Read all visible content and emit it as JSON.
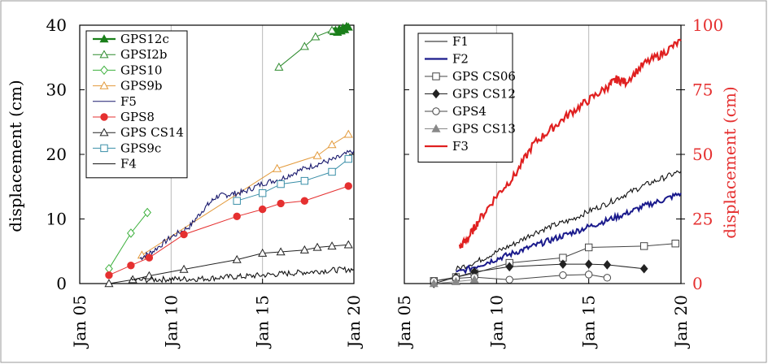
{
  "chart_data": [
    {
      "type": "line",
      "xaxis": {
        "type": "date",
        "range": [
          2005,
          2020
        ],
        "ticks": [
          2005,
          2010,
          2015,
          2020
        ],
        "tick_labels": [
          "Jan 05",
          "Jan 10",
          "Jan 15",
          "Jan 20"
        ]
      },
      "yaxis": {
        "label": "displacement (cm)",
        "range": [
          0,
          40
        ],
        "ticks": [
          0,
          10,
          20,
          30,
          40
        ],
        "tick_labels": [
          "0",
          "10",
          "20",
          "30",
          "40"
        ]
      },
      "grid": "vertical",
      "legend_position": "top-left",
      "series": [
        {
          "name": "GPS12c",
          "style": "line-filled-triangle",
          "color": "#1a7f1a",
          "x": [
            2018.9,
            2019.0,
            2019.1,
            2019.2,
            2019.3,
            2019.4,
            2019.5,
            2019.6,
            2019.7
          ],
          "y": [
            39.0,
            39.2,
            38.9,
            39.4,
            39.1,
            39.6,
            39.3,
            39.8,
            39.7
          ]
        },
        {
          "name": "GPSI2b",
          "style": "line-open-triangle",
          "color": "#2e8b2e",
          "x": [
            2015.9,
            2017.3,
            2017.9,
            2018.8
          ],
          "y": [
            33.5,
            36.7,
            38.2,
            39.2
          ]
        },
        {
          "name": "GPS10",
          "style": "line-open-diamond",
          "color": "#3cb03c",
          "x": [
            2006.6,
            2007.8,
            2008.7
          ],
          "y": [
            2.3,
            7.8,
            11.0
          ]
        },
        {
          "name": "GPS9b",
          "style": "line-open-triangle",
          "color": "#e39a3b",
          "x": [
            2008.4,
            2015.8,
            2018.0,
            2018.8,
            2019.7
          ],
          "y": [
            4.4,
            17.8,
            19.8,
            21.5,
            23.1
          ]
        },
        {
          "name": "F5",
          "style": "noisy-line",
          "color": "#1a1a6e",
          "x": [
            2008.3,
            2009.0,
            2010.0,
            2011.0,
            2011.8,
            2012.5,
            2013.2,
            2014.0,
            2015.0,
            2016.0,
            2017.0,
            2018.0,
            2019.0,
            2020.0
          ],
          "y": [
            3.9,
            5.0,
            7.2,
            8.8,
            11.6,
            13.5,
            13.8,
            14.2,
            15.5,
            16.2,
            17.5,
            18.5,
            19.3,
            20.6
          ]
        },
        {
          "name": "GPS8",
          "style": "line-filled-circle",
          "color": "#e53030",
          "x": [
            2006.6,
            2007.8,
            2008.8,
            2010.7,
            2013.6,
            2015.0,
            2016.0,
            2017.3,
            2019.7
          ],
          "y": [
            1.3,
            2.8,
            4.0,
            7.6,
            10.4,
            11.5,
            12.4,
            12.8,
            15.1
          ]
        },
        {
          "name": "GPS CS14",
          "style": "line-open-triangle",
          "color": "#222222",
          "x": [
            2006.6,
            2007.9,
            2008.8,
            2010.7,
            2013.6,
            2015.0,
            2016.0,
            2017.3,
            2018.0,
            2018.8,
            2019.7
          ],
          "y": [
            0.0,
            0.6,
            1.2,
            2.2,
            3.7,
            4.7,
            4.9,
            5.2,
            5.6,
            5.8,
            6.0
          ]
        },
        {
          "name": "GPS9c",
          "style": "line-open-square",
          "color": "#3a8fa8",
          "x": [
            2013.6,
            2015.0,
            2016.0,
            2017.3,
            2018.8,
            2019.7
          ],
          "y": [
            12.8,
            14.0,
            15.4,
            15.9,
            17.3,
            19.3
          ]
        },
        {
          "name": "F4",
          "style": "noisy-line",
          "color": "#111111",
          "x": [
            2007.8,
            2009.0,
            2010.0,
            2011.0,
            2012.0,
            2013.0,
            2014.0,
            2015.0,
            2016.0,
            2017.0,
            2018.0,
            2019.0,
            2020.0
          ],
          "y": [
            0.5,
            0.6,
            0.7,
            0.7,
            0.8,
            1.0,
            1.1,
            1.3,
            1.5,
            1.7,
            1.9,
            2.1,
            2.2
          ]
        }
      ]
    },
    {
      "type": "line",
      "xaxis": {
        "type": "date",
        "range": [
          2005,
          2020
        ],
        "ticks": [
          2005,
          2010,
          2015,
          2020
        ],
        "tick_labels": [
          "Jan 05",
          "Jan 10",
          "Jan 15",
          "Jan 20"
        ]
      },
      "yaxis": {
        "label": "",
        "range": [
          0,
          40
        ],
        "ticks": [
          0,
          10,
          20,
          30,
          40
        ],
        "tick_labels": []
      },
      "y2axis": {
        "label": "displacement (cm)",
        "range": [
          0,
          100
        ],
        "ticks": [
          0,
          25,
          50,
          75,
          100
        ],
        "tick_labels": [
          "0",
          "25",
          "50",
          "75",
          "100"
        ],
        "color": "#e53030"
      },
      "grid": "vertical",
      "legend_position": "top-left",
      "series": [
        {
          "name": "F1",
          "style": "noisy-line",
          "color": "#111111",
          "axis": "left",
          "x": [
            2007.8,
            2009.0,
            2010.0,
            2011.0,
            2012.0,
            2013.0,
            2014.0,
            2015.0,
            2016.0,
            2017.0,
            2018.0,
            2019.0,
            2020.0
          ],
          "y": [
            2.2,
            3.5,
            4.9,
            6.2,
            7.8,
            8.9,
            9.8,
            11.2,
            12.4,
            13.8,
            15.2,
            16.3,
            17.4
          ]
        },
        {
          "name": "F2",
          "style": "noisy-line",
          "color": "#1a1a8c",
          "axis": "left",
          "x": [
            2007.8,
            2009.0,
            2010.0,
            2011.0,
            2012.0,
            2013.0,
            2014.0,
            2015.0,
            2016.0,
            2017.0,
            2018.0,
            2019.0,
            2020.0
          ],
          "y": [
            1.6,
            2.8,
            3.8,
            4.8,
            5.8,
            6.8,
            7.8,
            8.8,
            9.8,
            10.8,
            12.0,
            12.9,
            14.0
          ]
        },
        {
          "name": "GPS CS06",
          "style": "line-open-square",
          "color": "#444444",
          "axis": "left",
          "x": [
            2006.6,
            2007.8,
            2008.8,
            2010.7,
            2013.6,
            2015.0,
            2018.0,
            2019.7
          ],
          "y": [
            0.4,
            1.0,
            1.6,
            3.2,
            4.0,
            5.6,
            5.8,
            6.2
          ]
        },
        {
          "name": "GPS CS12",
          "style": "line-filled-diamond",
          "color": "#222222",
          "axis": "left",
          "x": [
            2006.6,
            2007.8,
            2008.8,
            2010.7,
            2013.6,
            2015.0,
            2016.0,
            2018.0
          ],
          "y": [
            0.0,
            1.0,
            1.8,
            2.6,
            3.0,
            3.0,
            2.9,
            2.3
          ]
        },
        {
          "name": "GPS4",
          "style": "line-open-circle",
          "color": "#444444",
          "axis": "left",
          "x": [
            2006.6,
            2007.8,
            2008.8,
            2010.7,
            2013.6,
            2015.0,
            2016.0
          ],
          "y": [
            0.4,
            0.8,
            1.0,
            0.6,
            1.3,
            1.4,
            0.9
          ]
        },
        {
          "name": "GPS CS13",
          "style": "line-filled-triangle",
          "color": "#888888",
          "axis": "left",
          "x": [
            2006.6,
            2007.8,
            2008.8
          ],
          "y": [
            0.0,
            0.3,
            0.6
          ]
        },
        {
          "name": "F3",
          "style": "noisy-line",
          "color": "#e02020",
          "axis": "right",
          "x": [
            2008.0,
            2008.5,
            2009.0,
            2010.0,
            2011.0,
            2012.0,
            2013.0,
            2014.0,
            2015.0,
            2016.0,
            2016.5,
            2017.0,
            2018.0,
            2019.0,
            2020.0
          ],
          "y": [
            14.0,
            18.0,
            24.0,
            34.0,
            42.0,
            54.0,
            60.0,
            66.0,
            71.0,
            76.0,
            79.0,
            78.0,
            85.0,
            89.0,
            94.0
          ]
        }
      ]
    }
  ]
}
